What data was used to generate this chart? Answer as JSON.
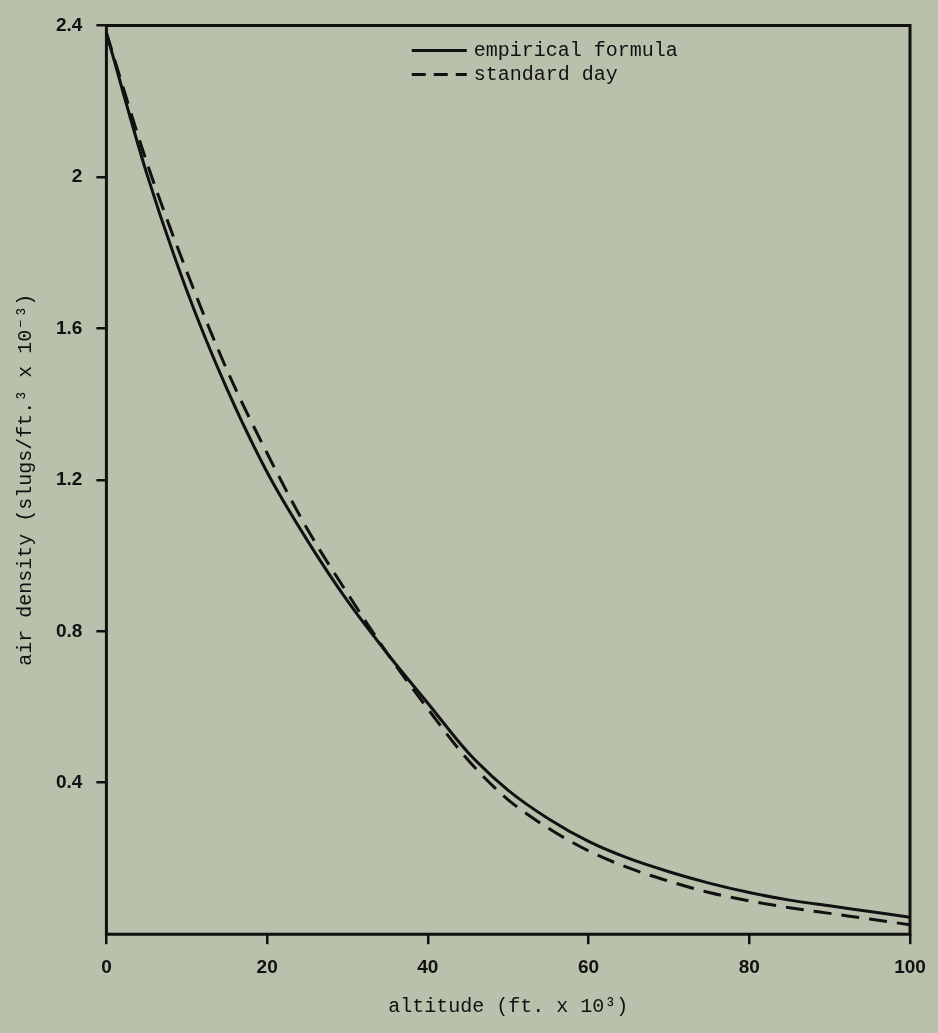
{
  "chart_data": {
    "type": "line",
    "xlabel": "altitude (ft. x 10³)",
    "ylabel": "air density (slugs/ft.³ x 10⁻³)",
    "xlim": [
      0,
      100
    ],
    "xticks": [
      0,
      20,
      40,
      60,
      80,
      100
    ],
    "ylim": [
      0,
      2.4
    ],
    "yticks": [
      0.4,
      0.8,
      1.2,
      1.6,
      2.0,
      2.4
    ],
    "grid": false,
    "legend": "top right",
    "marker": "none",
    "series": [
      {
        "name": "empirical formula",
        "color": "#111111",
        "line_style": "solid",
        "x": [
          0,
          5,
          10,
          15,
          20,
          25,
          30,
          35,
          40,
          45,
          50,
          55,
          60,
          65,
          70,
          75,
          80,
          85,
          90,
          95,
          100
        ],
        "values": [
          2.38,
          2.01,
          1.7,
          1.44,
          1.22,
          1.04,
          0.88,
          0.74,
          0.61,
          0.48,
          0.38,
          0.305,
          0.245,
          0.2,
          0.165,
          0.135,
          0.11,
          0.09,
          0.075,
          0.06,
          0.045
        ]
      },
      {
        "name": "standard day",
        "color": "#111111",
        "line_style": "dashed",
        "x": [
          0,
          5,
          10,
          15,
          20,
          25,
          30,
          35,
          40,
          45,
          50,
          55,
          60,
          65,
          70,
          75,
          80,
          85,
          90,
          95,
          100
        ],
        "values": [
          2.38,
          2.04,
          1.75,
          1.49,
          1.27,
          1.07,
          0.9,
          0.74,
          0.595,
          0.46,
          0.355,
          0.28,
          0.22,
          0.175,
          0.14,
          0.11,
          0.088,
          0.07,
          0.055,
          0.04,
          0.025
        ]
      }
    ]
  }
}
